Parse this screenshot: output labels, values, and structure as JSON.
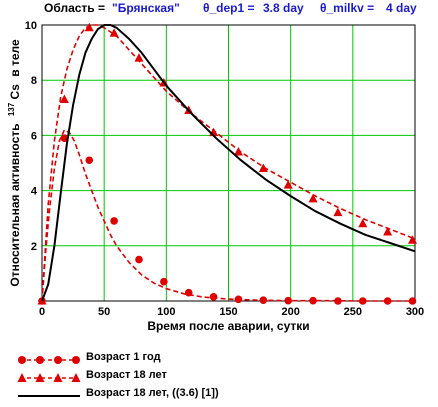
{
  "header": {
    "region_label": "Область =",
    "region_value": "\"Брянская\"",
    "dep_label": "θ_dep1 =",
    "dep_value": "3.8 day",
    "milk_label": "θ_milkv =",
    "milk_value": "4 day"
  },
  "colors": {
    "series_red": "#e00000",
    "series_black": "#000000",
    "grid": "#00c800",
    "header_value": "#1a1acc"
  },
  "chart_data": {
    "type": "line",
    "xlabel": "Время после аварии, сутки",
    "ylabel_prefix": "Относительная активность",
    "ylabel_isotope_mass": "137",
    "ylabel_isotope": "Cs",
    "ylabel_suffix": "в теле",
    "xlim": [
      0,
      300
    ],
    "ylim": [
      0,
      10
    ],
    "xticks": [
      0,
      50,
      100,
      150,
      200,
      250,
      300
    ],
    "yticks": [
      2,
      4,
      6,
      8,
      10
    ],
    "grid": true,
    "legend_position": "bottom",
    "series": [
      {
        "name": "Возраст 1 год",
        "style": "dashed",
        "marker": "circle",
        "color": "#e00000",
        "x": [
          0,
          3,
          6,
          10,
          14,
          18,
          22,
          26,
          30,
          35,
          40,
          45,
          50,
          55,
          60,
          70,
          80,
          90,
          100,
          115,
          130,
          150,
          175,
          200,
          230,
          260,
          300
        ],
        "y": [
          0,
          1.8,
          3.3,
          4.8,
          5.8,
          6.2,
          6.1,
          5.8,
          5.3,
          4.6,
          4.0,
          3.4,
          2.9,
          2.4,
          2.0,
          1.4,
          0.95,
          0.65,
          0.45,
          0.25,
          0.14,
          0.07,
          0.03,
          0.01,
          0.01,
          0.0,
          0.0
        ],
        "marker_x": [
          0,
          18,
          38,
          58,
          78,
          98,
          118,
          138,
          158,
          178,
          198,
          218,
          238,
          258,
          278,
          298
        ],
        "marker_y": [
          0,
          5.9,
          5.1,
          2.9,
          1.5,
          0.7,
          0.3,
          0.15,
          0.06,
          0.03,
          0.01,
          0.01,
          0.0,
          0.0,
          0.0,
          0.0
        ]
      },
      {
        "name": "Возраст 18 лет",
        "style": "dashed",
        "marker": "triangle",
        "color": "#e00000",
        "x": [
          0,
          5,
          10,
          15,
          20,
          25,
          30,
          35,
          40,
          45,
          50,
          60,
          70,
          80,
          90,
          100,
          120,
          140,
          160,
          180,
          200,
          220,
          240,
          260,
          280,
          300
        ],
        "y": [
          0,
          3.5,
          5.8,
          7.4,
          8.4,
          9.1,
          9.6,
          9.9,
          10.0,
          10.0,
          9.9,
          9.6,
          9.1,
          8.6,
          8.1,
          7.6,
          6.8,
          6.1,
          5.4,
          4.8,
          4.3,
          3.8,
          3.35,
          2.95,
          2.6,
          2.25
        ],
        "marker_x": [
          0,
          18,
          38,
          58,
          78,
          98,
          118,
          138,
          158,
          178,
          198,
          218,
          238,
          258,
          278,
          298
        ],
        "marker_y": [
          0,
          7.3,
          9.9,
          9.7,
          8.8,
          7.9,
          6.9,
          6.1,
          5.4,
          4.8,
          4.2,
          3.7,
          3.2,
          2.8,
          2.5,
          2.2
        ]
      },
      {
        "name": "Возраст 18 лет,  ((3.6) [1])",
        "style": "solid",
        "marker": "none",
        "color": "#000000",
        "x": [
          0,
          5,
          10,
          15,
          20,
          25,
          30,
          35,
          40,
          45,
          50,
          55,
          60,
          70,
          80,
          90,
          100,
          120,
          140,
          160,
          180,
          200,
          220,
          240,
          260,
          280,
          300
        ],
        "y": [
          0,
          0.6,
          2.0,
          3.9,
          5.7,
          7.1,
          8.2,
          9.0,
          9.5,
          9.85,
          10.0,
          10.0,
          9.9,
          9.5,
          9.0,
          8.4,
          7.8,
          6.8,
          5.9,
          5.1,
          4.4,
          3.8,
          3.25,
          2.8,
          2.4,
          2.1,
          1.8
        ]
      }
    ]
  }
}
